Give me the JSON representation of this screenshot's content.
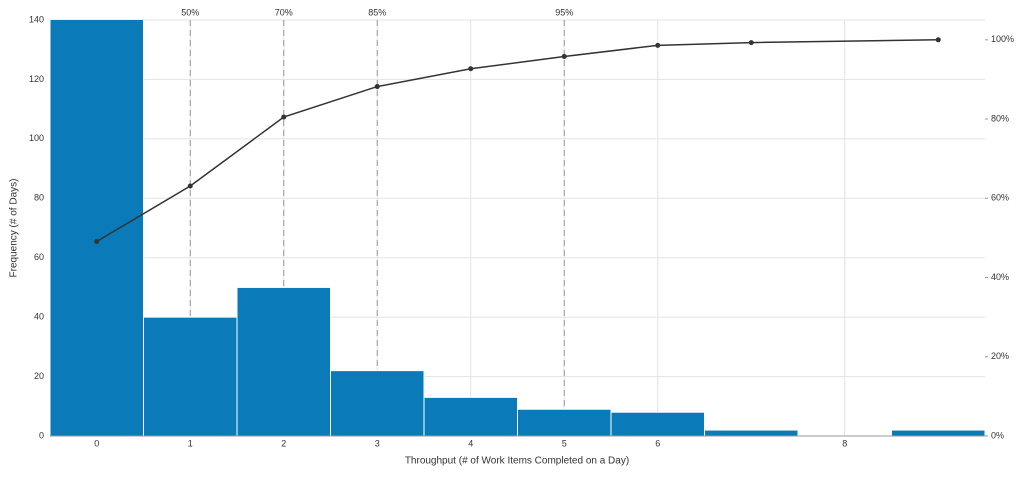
{
  "chart_data": {
    "type": "bar",
    "x": [
      0,
      1,
      2,
      3,
      4,
      5,
      6,
      7,
      8,
      9
    ],
    "values": [
      141,
      40,
      50,
      22,
      13,
      9,
      8,
      2,
      0,
      2
    ],
    "color": "#0a7ab8",
    "xlim": [
      -0.5,
      9.5
    ],
    "xticks": [
      0,
      1,
      2,
      3,
      4,
      5,
      6,
      8
    ],
    "ylim": [
      0,
      140
    ],
    "yticks": [
      0,
      20,
      40,
      60,
      80,
      100,
      120,
      140
    ],
    "y2lim": [
      0,
      105
    ],
    "y2ticks": [
      {
        "value": 0,
        "label": "0%"
      },
      {
        "value": 20,
        "label": "20%"
      },
      {
        "value": 40,
        "label": "40%"
      },
      {
        "value": 60,
        "label": "60%"
      },
      {
        "value": 80,
        "label": "80%"
      },
      {
        "value": 100,
        "label": "100%"
      }
    ],
    "cumulative": {
      "x": [
        0,
        1,
        2,
        3,
        4,
        5,
        6,
        7,
        9
      ],
      "values": [
        49.1,
        63.1,
        80.5,
        88.2,
        92.7,
        95.8,
        98.6,
        99.3,
        100
      ],
      "color": "#333333",
      "axis": "y2"
    },
    "percentiles": [
      {
        "x": 1,
        "label": "50%"
      },
      {
        "x": 2,
        "label": "70%"
      },
      {
        "x": 3,
        "label": "85%"
      },
      {
        "x": 5,
        "label": "95%"
      }
    ],
    "xlabel": "Throughput (# of Work Items Completed on a Day)",
    "ylabel": "Frequency (# of Days)",
    "grid": true
  }
}
